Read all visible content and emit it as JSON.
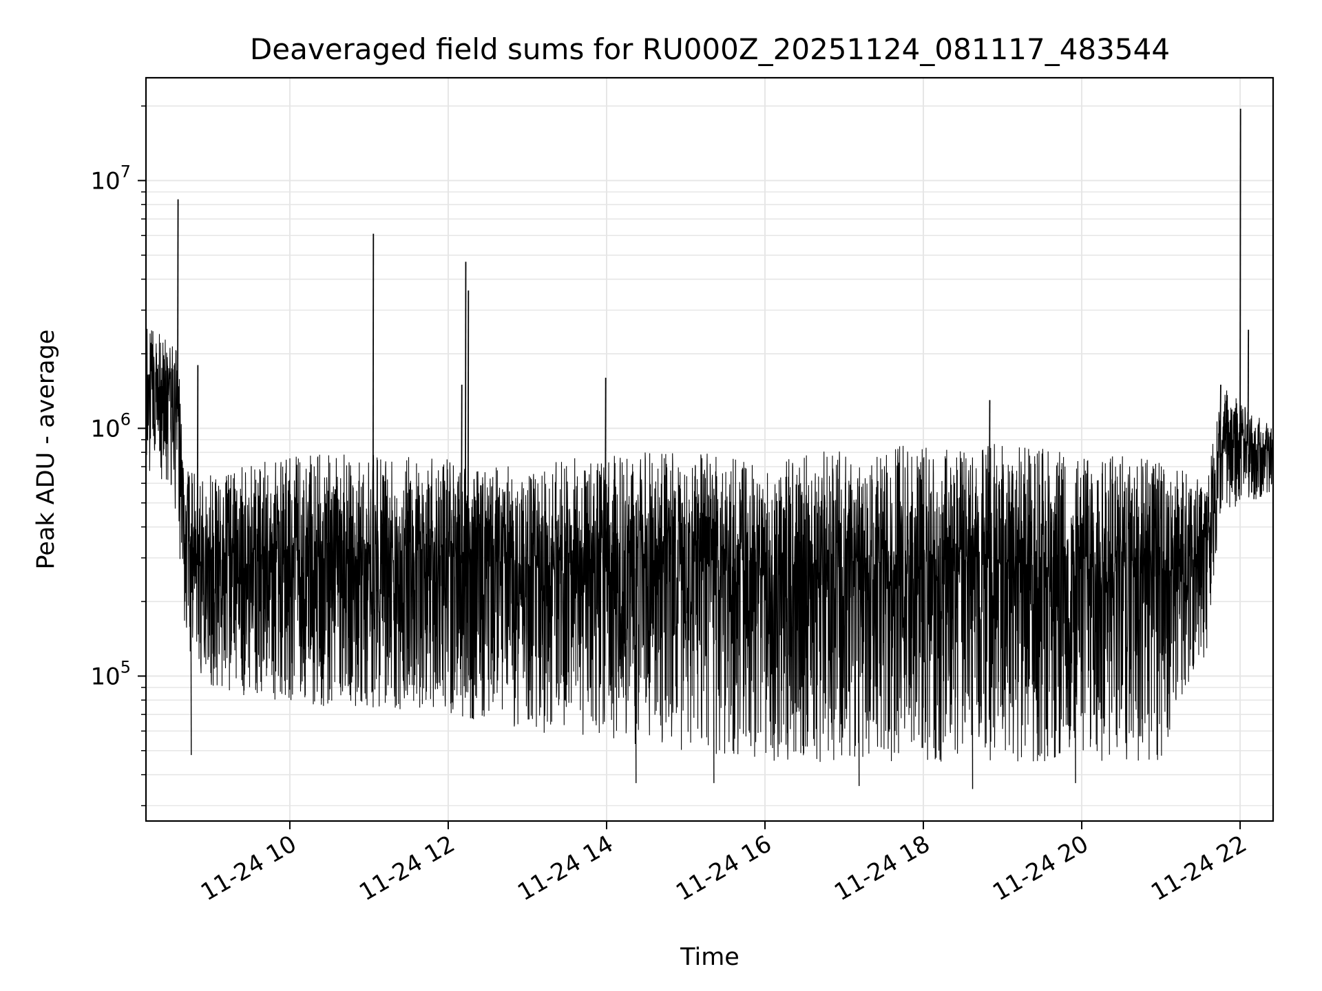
{
  "chart_data": {
    "type": "line",
    "title": "Deaveraged field sums for RU000Z_20251124_081117_483544",
    "xlabel": "Time",
    "ylabel": "Peak ADU - average",
    "yscale": "log",
    "ylim": [
      26000,
      26000000
    ],
    "xlim": [
      "2025-11-24T08:11",
      "2025-11-24T22:25"
    ],
    "xticks": [
      {
        "label": "11-24 10",
        "t": "2025-11-24T10:00"
      },
      {
        "label": "11-24 12",
        "t": "2025-11-24T12:00"
      },
      {
        "label": "11-24 14",
        "t": "2025-11-24T14:00"
      },
      {
        "label": "11-24 16",
        "t": "2025-11-24T16:00"
      },
      {
        "label": "11-24 18",
        "t": "2025-11-24T18:00"
      },
      {
        "label": "11-24 20",
        "t": "2025-11-24T20:00"
      },
      {
        "label": "11-24 22",
        "t": "2025-11-24T22:00"
      }
    ],
    "yticks": [
      {
        "base": "10",
        "exp": "5",
        "value": 100000
      },
      {
        "base": "10",
        "exp": "6",
        "value": 1000000
      },
      {
        "base": "10",
        "exp": "7",
        "value": 10000000
      }
    ],
    "grid": true,
    "line_color": "#000000",
    "series": [
      {
        "values_note_free": true,
        "envelope": [
          {
            "t": "2025-11-24T08:11",
            "lo": 700000,
            "hi": 2700000
          },
          {
            "t": "2025-11-24T08:35",
            "lo": 450000,
            "hi": 2300000
          },
          {
            "t": "2025-11-24T08:40",
            "lo": 120000,
            "hi": 700000
          },
          {
            "t": "2025-11-24T09:00",
            "lo": 90000,
            "hi": 650000
          },
          {
            "t": "2025-11-24T10:00",
            "lo": 75000,
            "hi": 780000
          },
          {
            "t": "2025-11-24T11:00",
            "lo": 75000,
            "hi": 800000
          },
          {
            "t": "2025-11-24T12:00",
            "lo": 70000,
            "hi": 750000
          },
          {
            "t": "2025-11-24T13:00",
            "lo": 60000,
            "hi": 700000
          },
          {
            "t": "2025-11-24T14:00",
            "lo": 55000,
            "hi": 800000
          },
          {
            "t": "2025-11-24T15:00",
            "lo": 50000,
            "hi": 820000
          },
          {
            "t": "2025-11-24T16:00",
            "lo": 45000,
            "hi": 720000
          },
          {
            "t": "2025-11-24T17:00",
            "lo": 45000,
            "hi": 850000
          },
          {
            "t": "2025-11-24T18:00",
            "lo": 45000,
            "hi": 880000
          },
          {
            "t": "2025-11-24T19:00",
            "lo": 45000,
            "hi": 880000
          },
          {
            "t": "2025-11-24T20:00",
            "lo": 45000,
            "hi": 800000
          },
          {
            "t": "2025-11-24T21:00",
            "lo": 45000,
            "hi": 750000
          },
          {
            "t": "2025-11-24T21:35",
            "lo": 120000,
            "hi": 600000
          },
          {
            "t": "2025-11-24T21:45",
            "lo": 450000,
            "hi": 1500000
          },
          {
            "t": "2025-11-24T22:25",
            "lo": 550000,
            "hi": 1000000
          }
        ],
        "spikes": [
          {
            "t": "2025-11-24T08:35",
            "value": 8400000
          },
          {
            "t": "2025-11-24T11:03",
            "value": 6100000
          },
          {
            "t": "2025-11-24T12:13",
            "value": 4700000
          },
          {
            "t": "2025-11-24T12:15",
            "value": 3600000
          },
          {
            "t": "2025-11-24T12:10",
            "value": 1500000
          },
          {
            "t": "2025-11-24T13:59",
            "value": 1600000
          },
          {
            "t": "2025-11-24T08:50",
            "value": 1800000
          },
          {
            "t": "2025-11-24T18:50",
            "value": 1300000
          },
          {
            "t": "2025-11-24T21:45",
            "value": 1500000
          },
          {
            "t": "2025-11-24T22:00",
            "value": 19500000
          },
          {
            "t": "2025-11-24T22:06",
            "value": 2500000
          }
        ],
        "dips": [
          {
            "t": "2025-11-24T08:45",
            "value": 48000
          },
          {
            "t": "2025-11-24T14:22",
            "value": 37000
          },
          {
            "t": "2025-11-24T15:21",
            "value": 37000
          },
          {
            "t": "2025-11-24T17:11",
            "value": 36000
          },
          {
            "t": "2025-11-24T18:37",
            "value": 35000
          },
          {
            "t": "2025-11-24T19:55",
            "value": 37000
          }
        ]
      }
    ]
  }
}
